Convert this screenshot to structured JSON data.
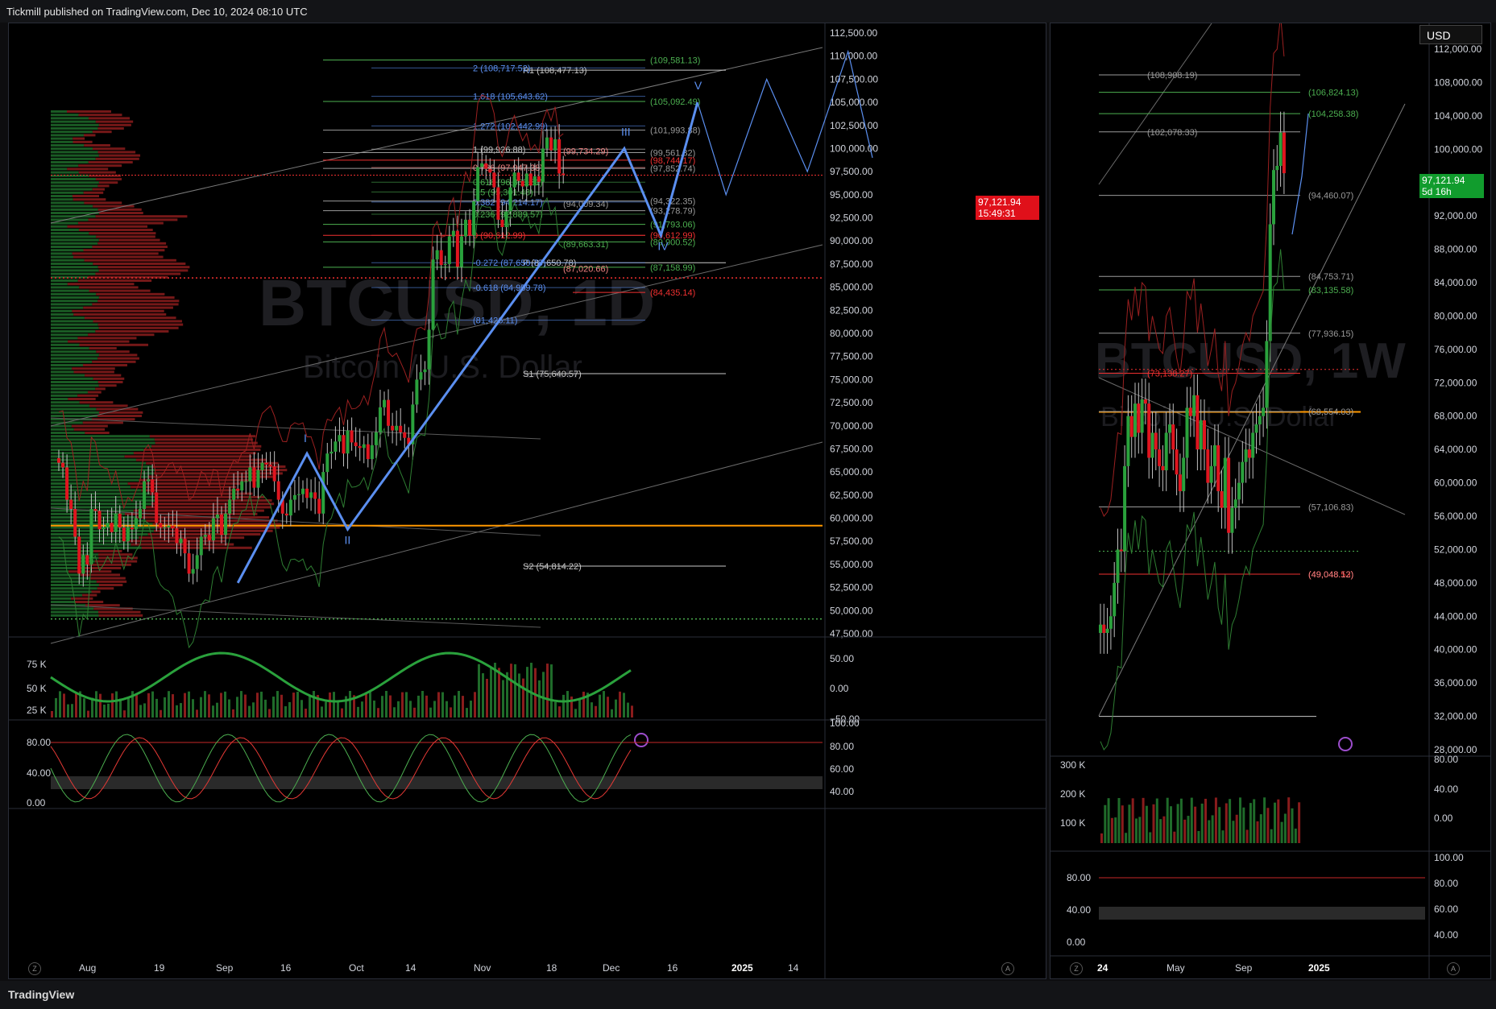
{
  "header": {
    "published": "Tickmill published on TradingView.com, Dec 10, 2024 08:10 UTC"
  },
  "footer": {
    "brand": "TradingView"
  },
  "currency": "USD",
  "colors": {
    "up": "#1e8a30",
    "down": "#e0151f",
    "wave": "#5b8ff0",
    "pivot": "#c8c8c8",
    "green_level": "#4caf50",
    "red_level": "#f03030",
    "orange_level": "#ff9800"
  },
  "icons": [
    "flash-icon",
    "zoom-icon",
    "auto-scale-icon"
  ],
  "chart_data": [
    {
      "type": "candlestick",
      "symbol_watermark": "BTCUSD, 1D",
      "description_watermark": "Bitcoin / U.S. Dollar",
      "last_price": "97,121.94",
      "countdown": "15:49:31",
      "ylim": [
        47500,
        112500
      ],
      "y_ticks": [
        "112,500.00",
        "110,000.00",
        "107,500.00",
        "105,000.00",
        "102,500.00",
        "100,000.00",
        "97,500.00",
        "95,000.00",
        "92,500.00",
        "90,000.00",
        "87,500.00",
        "85,000.00",
        "82,500.00",
        "80,000.00",
        "77,500.00",
        "75,000.00",
        "72,500.00",
        "70,000.00",
        "67,500.00",
        "65,000.00",
        "62,500.00",
        "60,000.00",
        "57,500.00",
        "55,000.00",
        "52,500.00",
        "50,000.00",
        "47,500.00"
      ],
      "x_ticks": [
        "Aug",
        "19",
        "Sep",
        "16",
        "Oct",
        "14",
        "Nov",
        "18",
        "Dec",
        "16",
        "2025",
        "14"
      ],
      "wave_labels": [
        "I",
        "II",
        "III",
        "IV",
        "V"
      ],
      "wave_points": [
        [
          0,
          53000
        ],
        [
          17,
          67000
        ],
        [
          27,
          58800
        ],
        [
          95,
          100000
        ],
        [
          104,
          90600
        ],
        [
          113,
          105000
        ]
      ],
      "projection_points": [
        [
          113,
          105000
        ],
        [
          120,
          95000
        ],
        [
          130,
          107500
        ],
        [
          140,
          97500
        ],
        [
          150,
          110500
        ],
        [
          156,
          99000
        ]
      ],
      "candles": {
        "start_date": "2024-07-31",
        "close": [
          66000,
          65500,
          62000,
          61000,
          58000,
          54000,
          56000,
          55000,
          61000,
          60800,
          58800,
          59000,
          59500,
          58500,
          60500,
          59000,
          57500,
          59000,
          58800,
          60000,
          61000,
          64000,
          64200,
          62800,
          59500,
          59000,
          59000,
          59200,
          58900,
          57300,
          57800,
          56200,
          54000,
          54500,
          56000,
          58000,
          58200,
          57600,
          60000,
          60400,
          58200,
          60500,
          62000,
          63200,
          63000,
          64000,
          64000,
          65500,
          63300,
          65200,
          66000,
          65800,
          65600,
          64000,
          62000,
          60500,
          60300,
          62000,
          62500,
          62600,
          63200,
          62200,
          62800,
          62100,
          60500,
          65000,
          67000,
          67200,
          68300,
          69000,
          67000,
          69500,
          68200,
          67800,
          67600,
          68000,
          66400,
          67900,
          69300,
          72000,
          72800,
          70000,
          69500,
          70000,
          69300,
          68700,
          68000,
          72300,
          75000,
          75800,
          76100,
          80400,
          88000,
          89000,
          87400,
          87500,
          90500,
          91100,
          87200,
          90500,
          92300,
          90600,
          94300,
          98000,
          98400,
          97800,
          97400,
          95800,
          92300,
          91500,
          93200,
          95800,
          97400,
          96500,
          95900,
          97300,
          96000,
          97000,
          96400,
          100000,
          101200,
          99800,
          101000,
          97300,
          97121
        ],
        "open": [
          66500,
          66000,
          65500,
          62000,
          61000,
          58000,
          54000,
          56000,
          55000,
          61000,
          60800,
          58800,
          59000,
          59500,
          58500,
          60500,
          59000,
          57500,
          59000,
          58800,
          60000,
          61000,
          64000,
          64200,
          62800,
          59500,
          59000,
          59000,
          59200,
          58900,
          57300,
          57800,
          56200,
          54000,
          54500,
          56000,
          58000,
          58200,
          57600,
          60000,
          60400,
          58200,
          60500,
          62000,
          63200,
          63000,
          64000,
          64000,
          65500,
          63300,
          65200,
          66000,
          65800,
          65600,
          64000,
          62000,
          60500,
          60300,
          62000,
          62500,
          62600,
          63200,
          62200,
          62800,
          62100,
          60500,
          65000,
          67000,
          67200,
          68300,
          69000,
          67000,
          69500,
          68200,
          67800,
          67600,
          68000,
          66400,
          67900,
          69300,
          72000,
          72800,
          70000,
          69500,
          70000,
          69300,
          68700,
          68000,
          72300,
          75000,
          75800,
          76100,
          80400,
          88000,
          89000,
          87400,
          87500,
          90500,
          91100,
          87200,
          90500,
          92300,
          90600,
          94300,
          98000,
          98400,
          97800,
          97400,
          95800,
          92300,
          91500,
          93200,
          95800,
          97400,
          96500,
          95900,
          97300,
          96000,
          97000,
          96400,
          100000,
          101200,
          99800,
          101000,
          97300
        ]
      },
      "pivots": [
        "R1 (108,477.13)",
        "S1 (75,640.57)",
        "S2 (54,814.22)",
        "P (87,650.78)"
      ],
      "fib_levels": [
        "2 (108,717.52)",
        "1.618 (105,643.62)",
        "1.272 (102,442.99)",
        "1 (99,926.88)",
        "0.786 (97,947.38)",
        "0.618 (96,363.51)",
        "0.5 (95,301.48)",
        "0.382 (94,214.17)",
        "0.236 (92,889.57)",
        "0 (90,612.99)",
        "-0.272 (87,650.78)",
        "-0.618 (84,959.78)",
        "(81,426.11)"
      ],
      "level_labels": [
        "(109,581.13)",
        "(105,092.49)",
        "(101,993.88)",
        "(99,561.32)",
        "(98,744.17)",
        "(97,852.74)",
        "(94,322.35)",
        "(93,278.79)",
        "(91,793.06)",
        "(90,612.99)",
        "(89,900.52)",
        "(87,158.99)",
        "(84,435.14)",
        "(99,734.29)",
        "(94,009.34)",
        "(89,663.31)",
        "(87,020.66)"
      ],
      "osc1_ticks": [
        "75 K",
        "50 K",
        "25 K"
      ],
      "osc1_right_ticks": [
        "50.00",
        "0.00",
        "−50.00"
      ],
      "osc2_ticks": [
        "80.00",
        "40.00",
        "0.00"
      ],
      "osc2_right_ticks": [
        "100.00",
        "80.00",
        "60.00",
        "40.00"
      ]
    },
    {
      "type": "candlestick",
      "symbol_watermark": "BTCUSD, 1W",
      "description_watermark": "Bitcoin / U.S. Dollar",
      "last_price": "97,121.94",
      "countdown": "5d 16h",
      "ylim": [
        28000,
        112000
      ],
      "y_ticks": [
        "112,000.00",
        "108,000.00",
        "104,000.00",
        "100,000.00",
        "96,000.00",
        "92,000.00",
        "88,000.00",
        "84,000.00",
        "80,000.00",
        "76,000.00",
        "72,000.00",
        "68,000.00",
        "64,000.00",
        "60,000.00",
        "56,000.00",
        "52,000.00",
        "48,000.00",
        "44,000.00",
        "40,000.00",
        "36,000.00",
        "32,000.00",
        "28,000.00"
      ],
      "x_ticks": [
        "24",
        "May",
        "Sep",
        "2025"
      ],
      "candles": {
        "close": [
          43000,
          42000,
          42500,
          44000,
          48000,
          52000,
          51800,
          62000,
          68000,
          65500,
          69500,
          66000,
          70000,
          69500,
          63000,
          66000,
          64000,
          62000,
          61500,
          66000,
          67000,
          64000,
          61000,
          59000,
          63000,
          69000,
          68000,
          70500,
          64000,
          67500,
          64000,
          60000,
          62000,
          64500,
          59000,
          57000,
          63000,
          54000,
          57000,
          58000,
          60000,
          62500,
          64000,
          63000,
          66000,
          67000,
          68000,
          69000,
          77000,
          91000,
          97500,
          98000,
          102000,
          97121
        ],
        "open": [
          42000,
          43000,
          42000,
          42500,
          44000,
          48000,
          52000,
          51800,
          62000,
          68000,
          65500,
          69500,
          66000,
          70000,
          69500,
          63000,
          66000,
          64000,
          62000,
          61500,
          66000,
          67000,
          64000,
          61000,
          59000,
          63000,
          69000,
          68000,
          70500,
          64000,
          67500,
          64000,
          60000,
          62000,
          64500,
          59000,
          57000,
          63000,
          54000,
          57000,
          58000,
          60000,
          62500,
          64000,
          63000,
          66000,
          67000,
          68000,
          69000,
          77000,
          91000,
          97500,
          98000,
          102000
        ]
      },
      "level_labels": [
        "(108,908.19)",
        "(106,824.13)",
        "(104,258.38)",
        "(102,078.33)",
        "(94,460.07)",
        "(84,753.71)",
        "(83,135.58)",
        "(77,936.15)",
        "(73,138.27)",
        "(68,554.03)",
        "(57,106.83)",
        "(49,048.53)",
        "(49,048.12)"
      ],
      "osc1_ticks": [
        "300 K",
        "200 K",
        "100 K"
      ],
      "osc1_right_ticks": [
        "80.00",
        "40.00",
        "0.00"
      ],
      "osc2_ticks": [
        "80.00",
        "40.00",
        "0.00"
      ],
      "osc2_right_ticks": [
        "100.00",
        "80.00",
        "60.00",
        "40.00"
      ]
    }
  ]
}
